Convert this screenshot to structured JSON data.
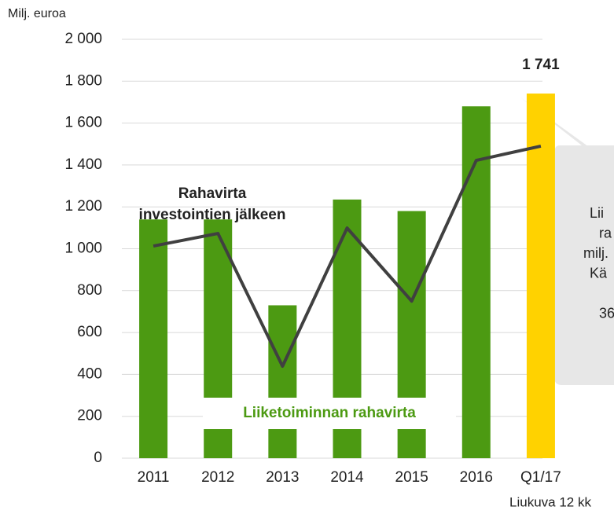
{
  "chart_data": {
    "type": "bar",
    "y_unit_label": "Milj. euroa",
    "categories": [
      "2011",
      "2012",
      "2013",
      "2014",
      "2015",
      "2016",
      "Q1/17"
    ],
    "category_note": "Liukuva 12 kk",
    "series": [
      {
        "name": "Liiketoiminnan rahavirta",
        "type": "bar",
        "colors": [
          "#4c9a12",
          "#4c9a12",
          "#4c9a12",
          "#4c9a12",
          "#4c9a12",
          "#4c9a12",
          "#ffd200"
        ],
        "values": [
          1140,
          1140,
          730,
          1235,
          1180,
          1680,
          1741
        ],
        "value_labels": [
          null,
          null,
          null,
          null,
          null,
          null,
          "1 741"
        ]
      },
      {
        "label_lines": [
          "Rahavirta",
          "investointien jälkeen"
        ],
        "type": "line",
        "color": "#404040",
        "values": [
          1013,
          1073,
          439,
          1099,
          750,
          1422,
          1490
        ]
      }
    ],
    "ylim": [
      0,
      2000
    ],
    "yticks": [
      {
        "value": 0,
        "label": "0"
      },
      {
        "value": 200,
        "label": "200"
      },
      {
        "value": 400,
        "label": "400"
      },
      {
        "value": 600,
        "label": "600"
      },
      {
        "value": 800,
        "label": "800"
      },
      {
        "value": 1000,
        "label": "1 000"
      },
      {
        "value": 1200,
        "label": "1 200"
      },
      {
        "value": 1400,
        "label": "1 400"
      },
      {
        "value": 1600,
        "label": "1 600"
      },
      {
        "value": 1800,
        "label": "1 800"
      },
      {
        "value": 2000,
        "label": "2 000"
      }
    ],
    "grid": true,
    "callout_lines": [
      "Lii",
      "ra",
      "milj.",
      "Kä",
      "",
      "36"
    ]
  }
}
